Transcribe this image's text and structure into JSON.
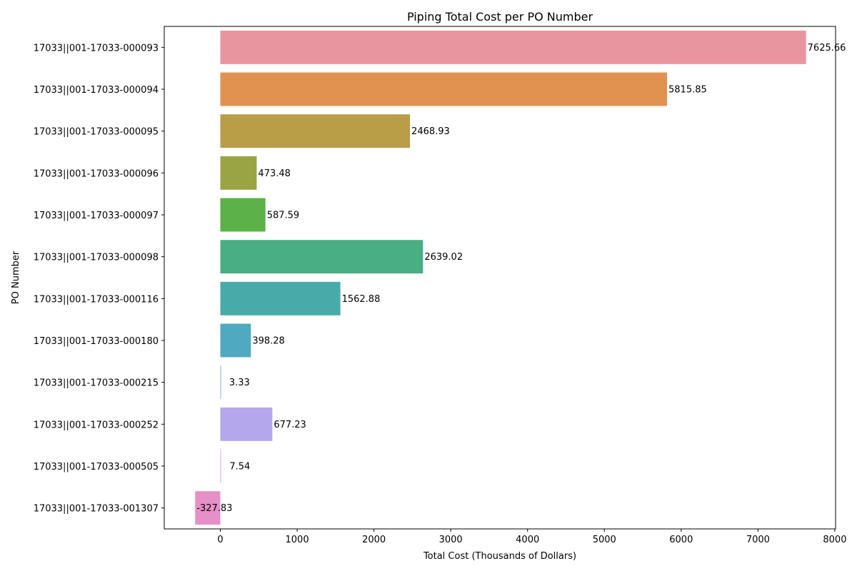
{
  "chart_data": {
    "type": "bar",
    "orientation": "horizontal",
    "title": "Piping Total Cost per PO Number",
    "xlabel": "Total Cost (Thousands of Dollars)",
    "ylabel": "PO Number",
    "xlim": [
      -730,
      8010
    ],
    "xticks": [
      0,
      1000,
      2000,
      3000,
      4000,
      5000,
      6000,
      7000,
      8000
    ],
    "grid": false,
    "legend": "none",
    "categories": [
      "17033||001-17033-000093",
      "17033||001-17033-000094",
      "17033||001-17033-000095",
      "17033||001-17033-000096",
      "17033||001-17033-000097",
      "17033||001-17033-000098",
      "17033||001-17033-000116",
      "17033||001-17033-000180",
      "17033||001-17033-000215",
      "17033||001-17033-000252",
      "17033||001-17033-000505",
      "17033||001-17033-001307"
    ],
    "values": [
      7625.66,
      5815.85,
      2468.93,
      473.48,
      587.59,
      2639.02,
      1562.88,
      398.28,
      3.33,
      677.23,
      7.54,
      -327.83
    ],
    "value_labels": [
      "7625.66",
      "5815.85",
      "2468.93",
      "473.48",
      "587.59",
      "2639.02",
      "1562.88",
      "398.28",
      "3.33",
      "677.23",
      "7.54",
      "-327.83"
    ],
    "colors": [
      "#e8959f",
      "#e29250",
      "#b99d47",
      "#9aa445",
      "#5db149",
      "#4aae83",
      "#49aaaa",
      "#4fa9c0",
      "#5aa0de",
      "#b5a7eb",
      "#df95e0",
      "#e78fc8"
    ]
  }
}
